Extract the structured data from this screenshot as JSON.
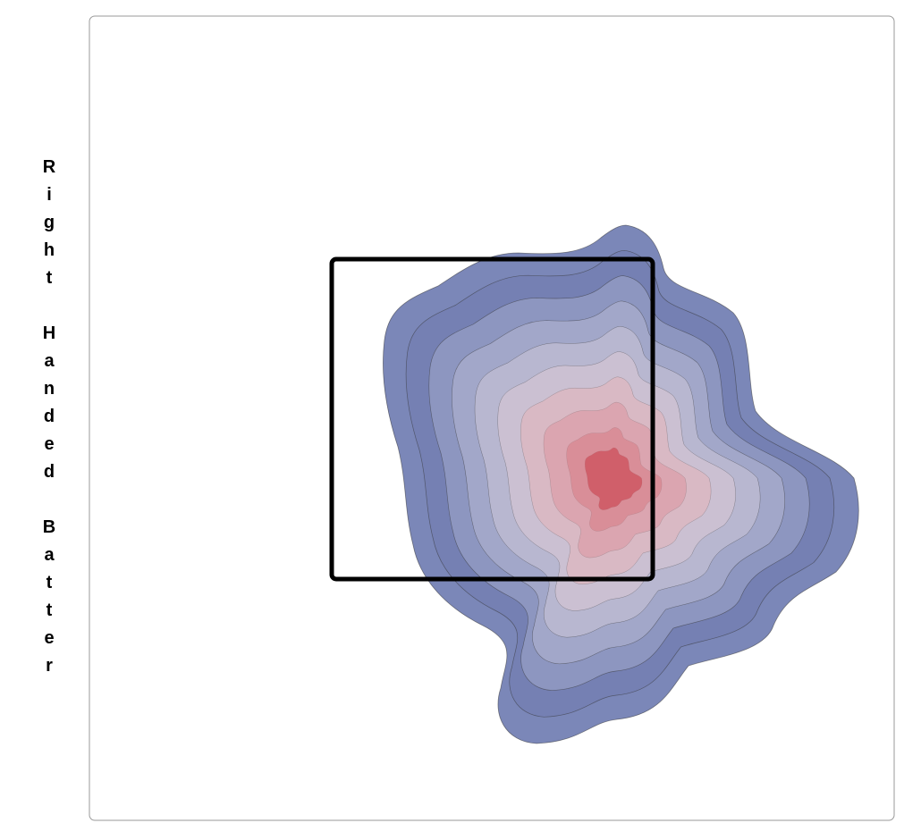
{
  "chart_data": {
    "type": "contour",
    "ylabel": "Right Handed Batter"
  }
}
